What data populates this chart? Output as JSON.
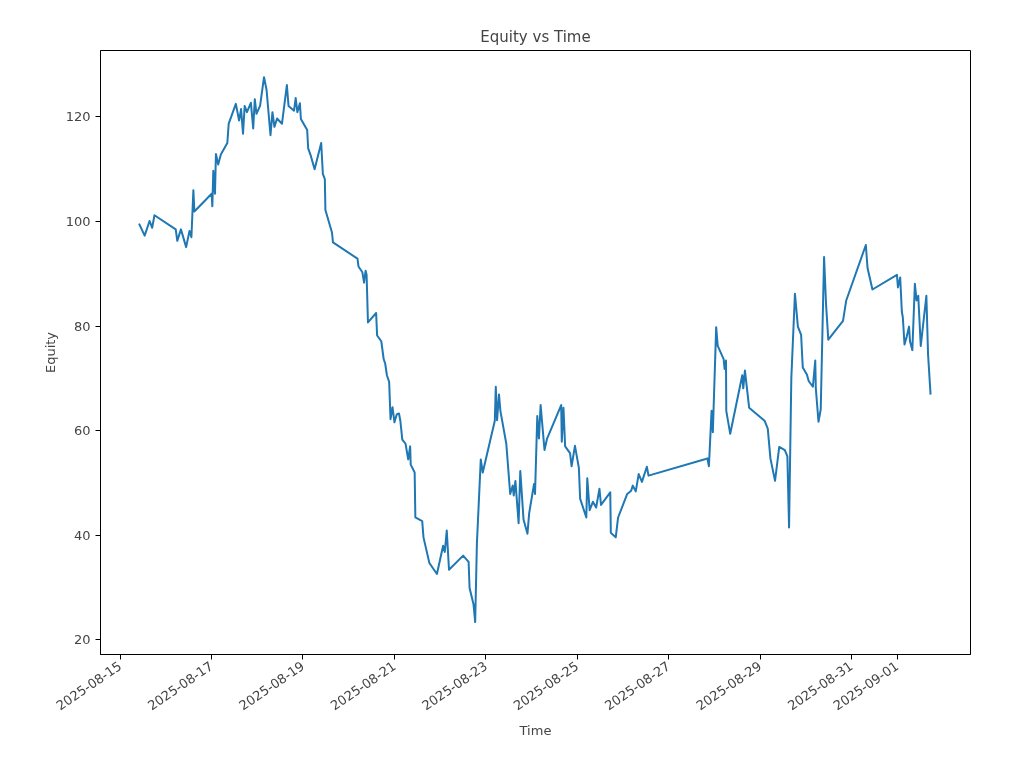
{
  "chart_data": {
    "type": "line",
    "title": "Equity vs Time",
    "xlabel": "Time",
    "ylabel": "Equity",
    "xlim": [
      "2025-08-14T13:42",
      "2025-09-02T14:30"
    ],
    "xticks": [
      "2025-08-15",
      "2025-08-17",
      "2025-08-19",
      "2025-08-21",
      "2025-08-23",
      "2025-08-25",
      "2025-08-27",
      "2025-08-29",
      "2025-08-31",
      "2025-09-01"
    ],
    "ylim": [
      17.2,
      132.7
    ],
    "yticks": [
      20,
      40,
      60,
      80,
      100,
      120
    ],
    "grid": false,
    "marker": "none",
    "line_style": "solid",
    "series": [
      {
        "color": "#1f77b4",
        "x": [
          "2025-08-15T09:56",
          "2025-08-15T12:53",
          "2025-08-15T15:27",
          "2025-08-15T16:50",
          "2025-08-15T18:02",
          "2025-08-16T05:12",
          "2025-08-16T06:01",
          "2025-08-16T07:56",
          "2025-08-16T10:40",
          "2025-08-16T12:25",
          "2025-08-16T13:26",
          "2025-08-16T14:28",
          "2025-08-16T14:59",
          "2025-08-17T00:03",
          "2025-08-17T00:25",
          "2025-08-17T00:56",
          "2025-08-17T01:48",
          "2025-08-17T02:19",
          "2025-08-17T03:30",
          "2025-08-17T04:53",
          "2025-08-17T08:17",
          "2025-08-17T09:01",
          "2025-08-17T12:46",
          "2025-08-17T14:28",
          "2025-08-17T15:30",
          "2025-08-17T16:32",
          "2025-08-17T17:24",
          "2025-08-17T18:35",
          "2025-08-17T20:39",
          "2025-08-17T21:53",
          "2025-08-17T22:43",
          "2025-08-17T23:35",
          "2025-08-18T01:29",
          "2025-08-18T03:33",
          "2025-08-18T04:53",
          "2025-08-18T06:57",
          "2025-08-18T07:59",
          "2025-08-18T09:01",
          "2025-08-18T10:24",
          "2025-08-18T12:59",
          "2025-08-18T15:33",
          "2025-08-18T16:26",
          "2025-08-18T19:19",
          "2025-08-18T20:11",
          "2025-08-18T21:04",
          "2025-08-18T22:24",
          "2025-08-18T22:55",
          "2025-08-19T02:13",
          "2025-08-19T02:44",
          "2025-08-19T03:55",
          "2025-08-19T06:07",
          "2025-08-19T09:35",
          "2025-08-19T10:27",
          "2025-08-19T11:29",
          "2025-08-19T11:47",
          "2025-08-19T15:14",
          "2025-08-19T15:46",
          "2025-08-20T04:38",
          "2025-08-20T05:09",
          "2025-08-20T07:12",
          "2025-08-20T08:05",
          "2025-08-20T08:54",
          "2025-08-20T09:25",
          "2025-08-20T10:08",
          "2025-08-20T14:25",
          "2025-08-20T14:56",
          "2025-08-20T17:08",
          "2025-08-20T18:23",
          "2025-08-20T19:12",
          "2025-08-20T20:05",
          "2025-08-20T21:16",
          "2025-08-20T21:59",
          "2025-08-20T23:01",
          "2025-08-21T00:03",
          "2025-08-21T01:14",
          "2025-08-21T02:25",
          "2025-08-21T03:08",
          "2025-08-21T04:10",
          "2025-08-21T05:52",
          "2025-08-21T07:16",
          "2025-08-21T08:17",
          "2025-08-21T08:35",
          "2025-08-21T10:39",
          "2025-08-21T11:01",
          "2025-08-21T14:37",
          "2025-08-21T15:17",
          "2025-08-21T18:23",
          "2025-08-21T22:21",
          "2025-08-22T01:35",
          "2025-08-22T02:28",
          "2025-08-22T03:30",
          "2025-08-22T04:41",
          "2025-08-22T12:06",
          "2025-08-22T14:59",
          "2025-08-22T15:29",
          "2025-08-22T17:33",
          "2025-08-22T18:26",
          "2025-08-22T19:19",
          "2025-08-22T21:22",
          "2025-08-22T22:24",
          "2025-08-23T04:44",
          "2025-08-23T05:15",
          "2025-08-23T05:55",
          "2025-08-23T06:56",
          "2025-08-23T07:40",
          "2025-08-23T10:46",
          "2025-08-23T12:49",
          "2025-08-23T14:09",
          "2025-08-23T14:40",
          "2025-08-23T15:33",
          "2025-08-23T17:14",
          "2025-08-23T18:07",
          "2025-08-23T19:49",
          "2025-08-23T21:53",
          "2025-08-23T22:46",
          "2025-08-24T01:20",
          "2025-08-24T01:51",
          "2025-08-24T03:02",
          "2025-08-24T03:55",
          "2025-08-24T04:47",
          "2025-08-24T06:50",
          "2025-08-24T08:11",
          "2025-08-24T15:36",
          "2025-08-24T15:54",
          "2025-08-24T16:47",
          "2025-08-24T17:40",
          "2025-08-24T20:14",
          "2025-08-24T21:03",
          "2025-08-24T22:49",
          "2025-08-25T00:52",
          "2025-08-25T01:32",
          "2025-08-25T04:47",
          "2025-08-25T05:17",
          "2025-08-25T06:32",
          "2025-08-25T08:14",
          "2025-08-25T09:56",
          "2025-08-25T11:41",
          "2025-08-25T12:30",
          "2025-08-25T17:21",
          "2025-08-25T17:39",
          "2025-08-25T20:14",
          "2025-08-25T21:28",
          "2025-08-26T02:16",
          "2025-08-26T04:19",
          "2025-08-26T05:11",
          "2025-08-26T06:44",
          "2025-08-26T08:17",
          "2025-08-26T09:59",
          "2025-08-26T12:34",
          "2025-08-26T13:26",
          "2025-08-27T19:28",
          "2025-08-27T20:20",
          "2025-08-27T21:09",
          "2025-08-27T22:33",
          "2025-08-27T23:13",
          "2025-08-28T00:58",
          "2025-08-28T01:47",
          "2025-08-28T04:53",
          "2025-08-28T05:23",
          "2025-08-28T06:07",
          "2025-08-28T06:16",
          "2025-08-28T08:20",
          "2025-08-28T14:40",
          "2025-08-28T15:11",
          "2025-08-28T16:04",
          "2025-08-28T18:16",
          "2025-08-29T02:22",
          "2025-08-29T04:03",
          "2025-08-29T05:27",
          "2025-08-29T07:52",
          "2025-08-29T10:05",
          "2025-08-29T13:01",
          "2025-08-29T14:21",
          "2025-08-29T15:14",
          "2025-08-29T16:25",
          "2025-08-29T18:19",
          "2025-08-29T19:52",
          "2025-08-29T21:34",
          "2025-08-29T22:26",
          "2025-08-30T00:39",
          "2025-08-30T01:32",
          "2025-08-30T03:44",
          "2025-08-30T04:59",
          "2025-08-30T05:17",
          "2025-08-30T06:41",
          "2025-08-30T07:52",
          "2025-08-30T09:37",
          "2025-08-30T10:39",
          "2025-08-30T11:50",
          "2025-08-30T19:34",
          "2025-08-30T21:15",
          "2025-08-31T07:33",
          "2025-08-31T08:26",
          "2025-08-31T11:01",
          "2025-08-31T23:53",
          "2025-09-01T00:24",
          "2025-09-01T01:35",
          "2025-09-01T02:28",
          "2025-09-01T02:58",
          "2025-09-01T03:51",
          "2025-09-01T05:02",
          "2025-09-01T06:13",
          "2025-09-01T06:44",
          "2025-09-01T07:58",
          "2025-09-01T09:18",
          "2025-09-01T10:11",
          "2025-09-01T11:04",
          "2025-09-01T12:23",
          "2025-09-01T15:20",
          "2025-09-01T16:13",
          "2025-09-01T17:32"
        ],
        "values": [
          99.6,
          97.3,
          100.1,
          98.8,
          101.2,
          98.5,
          96.3,
          98.5,
          95.1,
          98.2,
          97.0,
          106.0,
          101.9,
          105.3,
          102.9,
          109.7,
          105.3,
          112.9,
          110.9,
          112.8,
          115.0,
          118.7,
          122.5,
          119.3,
          121.5,
          116.8,
          122.1,
          120.9,
          122.7,
          117.8,
          123.4,
          120.6,
          122.1,
          127.6,
          125.2,
          116.5,
          120.9,
          118.1,
          119.7,
          118.7,
          126.1,
          122.1,
          121.2,
          123.6,
          120.9,
          122.6,
          119.6,
          117.5,
          114.0,
          112.8,
          110.0,
          115.0,
          109.1,
          108.1,
          102.2,
          97.9,
          96.0,
          92.9,
          91.4,
          90.3,
          88.3,
          90.6,
          89.8,
          80.7,
          82.5,
          78.2,
          77.1,
          73.7,
          72.8,
          70.6,
          69.3,
          62.2,
          64.5,
          61.6,
          63.1,
          63.3,
          61.9,
          58.3,
          57.5,
          54.5,
          57.0,
          53.5,
          52.0,
          43.4,
          42.7,
          39.6,
          34.7,
          32.6,
          38.0,
          36.8,
          40.9,
          33.4,
          36.1,
          34.9,
          29.9,
          26.8,
          23.4,
          38.3,
          54.5,
          52.0,
          61.9,
          68.4,
          62.0,
          66.9,
          63.8,
          57.5,
          47.9,
          49.5,
          47.6,
          50.4,
          42.3,
          52.3,
          43.0,
          40.3,
          44.2,
          49.8,
          47.9,
          62.8,
          58.5,
          64.9,
          56.3,
          58.5,
          64.9,
          57.9,
          64.4,
          57.0,
          55.7,
          53.2,
          57.1,
          52.9,
          47.0,
          43.4,
          50.9,
          44.8,
          46.4,
          45.3,
          48.9,
          45.8,
          48.2,
          40.5,
          39.6,
          43.4,
          47.9,
          48.5,
          49.5,
          48.4,
          51.7,
          50.2,
          53.1,
          51.4,
          54.6,
          54.7,
          53.2,
          63.8,
          59.7,
          79.8,
          76.2,
          73.7,
          71.8,
          73.4,
          63.8,
          59.4,
          70.6,
          68.1,
          71.5,
          64.4,
          61.9,
          60.4,
          54.7,
          50.4,
          56.9,
          56.3,
          55.1,
          41.5,
          70.0,
          86.2,
          79.9,
          78.3,
          72.1,
          70.7,
          69.5,
          68.4,
          73.4,
          68.1,
          61.7,
          64.1,
          93.2,
          84.2,
          77.4,
          81.0,
          84.9,
          95.5,
          91.1,
          87.0,
          89.8,
          87.4,
          89.3,
          82.7,
          81.7,
          76.5,
          78.0,
          79.9,
          77.1,
          75.4,
          88.1,
          84.9,
          85.8,
          76.2,
          85.8,
          74.6,
          66.9
        ]
      }
    ]
  }
}
